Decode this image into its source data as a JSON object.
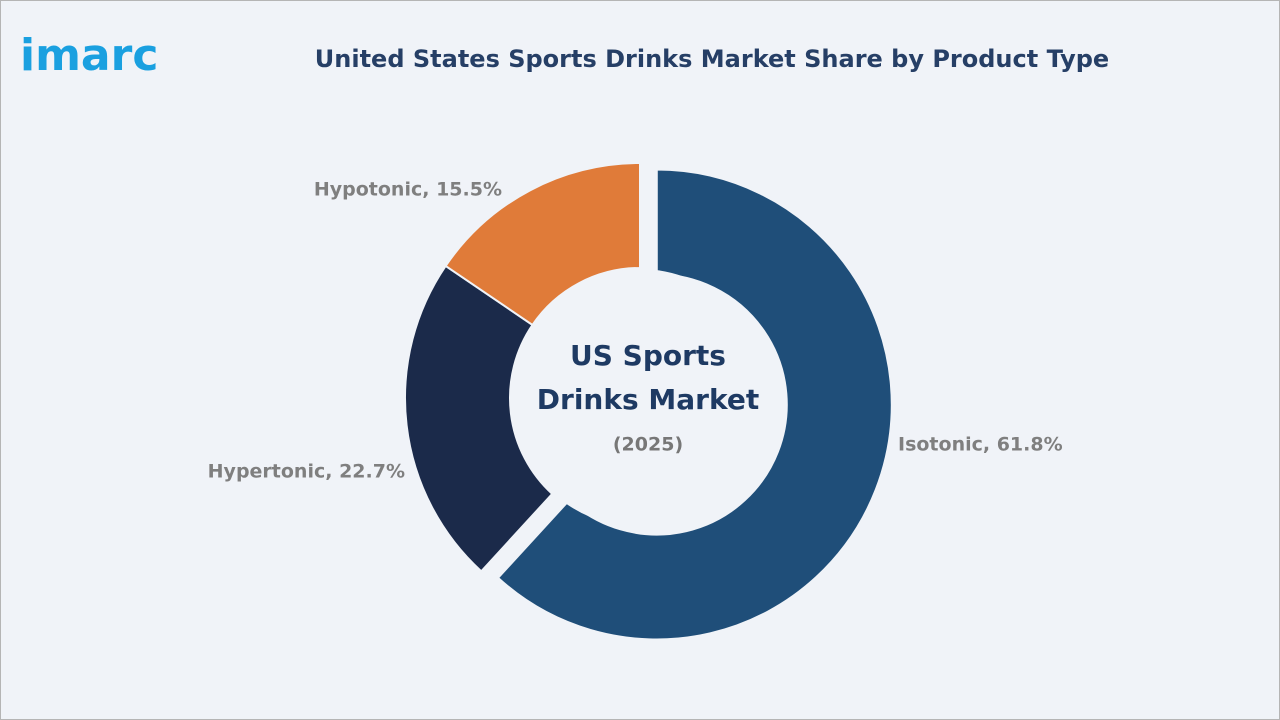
{
  "logo": "imarc",
  "chart_data": {
    "type": "donut",
    "title": "United States Sports Drinks Market Share by Product Type",
    "values": [
      61.8,
      22.7,
      15.5
    ],
    "value_labels": [
      "Isotonic, 61.8%",
      "Hypertonic, 22.7%",
      "Hypotonic, 15.5%"
    ],
    "colors": [
      "#1f4e79",
      "#1b2a4a",
      "#e07b39"
    ],
    "center_label": [
      "US Sports",
      "Drinks Market"
    ],
    "center_sublabel": "(2025)"
  }
}
